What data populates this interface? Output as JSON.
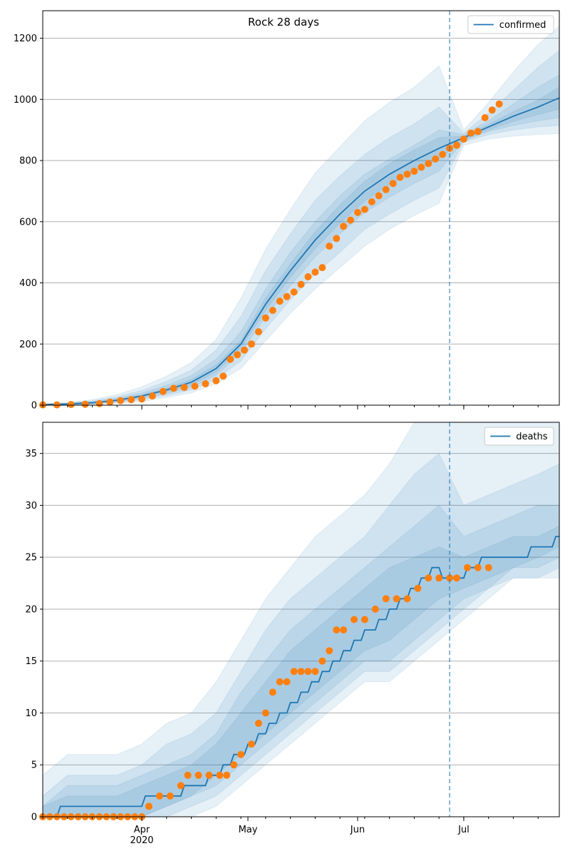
{
  "figure": {
    "title": "Rock 28 days"
  },
  "colors": {
    "model": "#1f77b4",
    "observed": "#ff7f0e",
    "band": "#1f77b4",
    "grid": "#b0b0b0",
    "vline": "#1f77b4"
  },
  "x_axis": {
    "tick_labels": [
      "Apr",
      "May",
      "Jun",
      "Jul"
    ],
    "tick_dates": [
      "2020-04-01",
      "2020-05-01",
      "2020-06-01",
      "2020-07-01"
    ],
    "year_label": "2020",
    "xlim": [
      "2020-03-04",
      "2020-07-28"
    ],
    "minor_tick_step_days": 7
  },
  "forecast_start": "2020-06-27",
  "chart_data": [
    {
      "type": "line",
      "panel": "confirmed",
      "ylim": [
        0,
        1290
      ],
      "yticks": [
        0,
        200,
        400,
        600,
        800,
        1000,
        1200
      ],
      "grid": true,
      "legend": {
        "placement": "top-right",
        "entries": [
          "confirmed"
        ]
      },
      "model": {
        "name": "confirmed",
        "x": [
          "2020-03-04",
          "2020-03-11",
          "2020-03-18",
          "2020-03-25",
          "2020-04-01",
          "2020-04-08",
          "2020-04-15",
          "2020-04-22",
          "2020-04-29",
          "2020-05-06",
          "2020-05-13",
          "2020-05-20",
          "2020-05-27",
          "2020-06-03",
          "2020-06-10",
          "2020-06-17",
          "2020-06-24",
          "2020-07-01",
          "2020-07-08",
          "2020-07-15",
          "2020-07-22",
          "2020-07-28"
        ],
        "y": [
          2,
          4,
          8,
          16,
          30,
          50,
          75,
          120,
          200,
          330,
          440,
          540,
          625,
          700,
          755,
          800,
          840,
          875,
          910,
          945,
          975,
          1005
        ]
      },
      "bands": [
        {
          "lo": [
            0,
            1,
            3,
            6,
            12,
            25,
            40,
            70,
            120,
            210,
            300,
            380,
            450,
            520,
            575,
            620,
            660,
            850,
            870,
            880,
            885,
            888
          ],
          "hi": [
            4,
            9,
            18,
            35,
            60,
            95,
            140,
            215,
            350,
            510,
            640,
            760,
            845,
            930,
            990,
            1040,
            1110,
            900,
            990,
            1090,
            1180,
            1240
          ]
        },
        {
          "lo": [
            0,
            2,
            4,
            9,
            18,
            32,
            50,
            85,
            145,
            250,
            345,
            430,
            500,
            575,
            625,
            670,
            710,
            860,
            885,
            900,
            910,
            915
          ],
          "hi": [
            3,
            7,
            14,
            28,
            48,
            78,
            115,
            180,
            290,
            440,
            560,
            670,
            750,
            820,
            875,
            920,
            975,
            890,
            955,
            1030,
            1105,
            1160
          ]
        },
        {
          "lo": [
            1,
            2,
            5,
            11,
            22,
            38,
            58,
            98,
            170,
            290,
            390,
            485,
            560,
            630,
            680,
            725,
            765,
            865,
            895,
            915,
            930,
            940
          ],
          "hi": [
            3,
            6,
            12,
            23,
            40,
            65,
            97,
            150,
            240,
            380,
            500,
            600,
            685,
            755,
            805,
            850,
            900,
            885,
            930,
            985,
            1040,
            1080
          ]
        },
        {
          "lo": [
            1,
            3,
            6,
            13,
            26,
            44,
            66,
            108,
            188,
            310,
            418,
            512,
            595,
            668,
            720,
            765,
            805,
            868,
            900,
            928,
            950,
            968
          ],
          "hi": [
            2,
            5,
            10,
            19,
            34,
            56,
            84,
            132,
            212,
            350,
            462,
            568,
            655,
            732,
            790,
            835,
            875,
            880,
            918,
            960,
            998,
            1040
          ]
        }
      ],
      "observed": {
        "x": [
          "2020-03-04",
          "2020-03-08",
          "2020-03-12",
          "2020-03-16",
          "2020-03-20",
          "2020-03-23",
          "2020-03-26",
          "2020-03-29",
          "2020-04-01",
          "2020-04-04",
          "2020-04-07",
          "2020-04-10",
          "2020-04-13",
          "2020-04-16",
          "2020-04-19",
          "2020-04-22",
          "2020-04-24",
          "2020-04-26",
          "2020-04-28",
          "2020-04-30",
          "2020-05-02",
          "2020-05-04",
          "2020-05-06",
          "2020-05-08",
          "2020-05-10",
          "2020-05-12",
          "2020-05-14",
          "2020-05-16",
          "2020-05-18",
          "2020-05-20",
          "2020-05-22",
          "2020-05-24",
          "2020-05-26",
          "2020-05-28",
          "2020-05-30",
          "2020-06-01",
          "2020-06-03",
          "2020-06-05",
          "2020-06-07",
          "2020-06-09",
          "2020-06-11",
          "2020-06-13",
          "2020-06-15",
          "2020-06-17",
          "2020-06-19",
          "2020-06-21",
          "2020-06-23",
          "2020-06-25",
          "2020-06-27",
          "2020-06-29",
          "2020-07-01",
          "2020-07-03",
          "2020-07-05",
          "2020-07-07",
          "2020-07-09",
          "2020-07-11"
        ],
        "y": [
          1,
          1,
          2,
          3,
          5,
          10,
          15,
          18,
          20,
          30,
          45,
          55,
          58,
          62,
          70,
          80,
          95,
          150,
          165,
          180,
          200,
          240,
          285,
          310,
          340,
          355,
          370,
          395,
          420,
          435,
          450,
          520,
          545,
          585,
          605,
          630,
          640,
          665,
          685,
          705,
          725,
          745,
          755,
          765,
          778,
          790,
          805,
          820,
          840,
          850,
          870,
          890,
          895,
          940,
          965,
          985
        ]
      }
    },
    {
      "type": "line",
      "panel": "deaths",
      "ylim": [
        0,
        38
      ],
      "yticks": [
        0,
        5,
        10,
        15,
        20,
        25,
        30,
        35
      ],
      "grid": true,
      "legend": {
        "placement": "top-right",
        "entries": [
          "deaths"
        ]
      },
      "model": {
        "name": "deaths",
        "x": [
          "2020-03-04",
          "2020-03-08",
          "2020-03-09",
          "2020-04-01",
          "2020-04-02",
          "2020-04-12",
          "2020-04-13",
          "2020-04-19",
          "2020-04-20",
          "2020-04-23",
          "2020-04-24",
          "2020-04-26",
          "2020-04-27",
          "2020-04-30",
          "2020-05-01",
          "2020-05-03",
          "2020-05-04",
          "2020-05-06",
          "2020-05-07",
          "2020-05-09",
          "2020-05-10",
          "2020-05-12",
          "2020-05-13",
          "2020-05-15",
          "2020-05-16",
          "2020-05-18",
          "2020-05-19",
          "2020-05-21",
          "2020-05-22",
          "2020-05-24",
          "2020-05-25",
          "2020-05-27",
          "2020-05-28",
          "2020-05-30",
          "2020-05-31",
          "2020-06-02",
          "2020-06-03",
          "2020-06-06",
          "2020-06-07",
          "2020-06-09",
          "2020-06-10",
          "2020-06-12",
          "2020-06-13",
          "2020-06-15",
          "2020-06-16",
          "2020-06-18",
          "2020-06-19",
          "2020-06-21",
          "2020-06-22",
          "2020-06-24",
          "2020-06-25",
          "2020-06-27",
          "2020-06-28",
          "2020-07-01",
          "2020-07-02",
          "2020-07-05",
          "2020-07-06",
          "2020-07-12",
          "2020-07-13",
          "2020-07-19",
          "2020-07-20",
          "2020-07-26",
          "2020-07-27",
          "2020-07-28"
        ],
        "y": [
          0,
          0,
          1,
          1,
          2,
          2,
          3,
          3,
          4,
          4,
          5,
          5,
          6,
          6,
          7,
          7,
          8,
          8,
          9,
          9,
          10,
          10,
          11,
          11,
          12,
          12,
          13,
          13,
          14,
          14,
          15,
          15,
          16,
          16,
          17,
          17,
          18,
          18,
          19,
          19,
          20,
          20,
          21,
          21,
          22,
          22,
          23,
          23,
          24,
          24,
          23,
          23,
          23,
          23,
          24,
          24,
          25,
          25,
          25,
          25,
          26,
          26,
          27,
          27
        ]
      },
      "bands": [
        {
          "lo": [
            0,
            0,
            0,
            0,
            0,
            0,
            0,
            1,
            3,
            5,
            7,
            9,
            11,
            13,
            13,
            15,
            17,
            19,
            21,
            23,
            23,
            23
          ],
          "hi": [
            4,
            6,
            6,
            6,
            7,
            9,
            10,
            13,
            17,
            21,
            24,
            27,
            29,
            31,
            34,
            38,
            40,
            38,
            38,
            38,
            38,
            38
          ]
        },
        {
          "lo": [
            0,
            0,
            0,
            0,
            0,
            0,
            1,
            2,
            4,
            6,
            8,
            10,
            12,
            14,
            14,
            16,
            18,
            20,
            22,
            23,
            23,
            24
          ],
          "hi": [
            2,
            4,
            4,
            4,
            5,
            7,
            8,
            10,
            14,
            18,
            21,
            23,
            25,
            27,
            30,
            33,
            35,
            30,
            31,
            32,
            33,
            34
          ]
        },
        {
          "lo": [
            0,
            0,
            0,
            0,
            0,
            1,
            2,
            3,
            5,
            7,
            9,
            11,
            13,
            15,
            15,
            17,
            19,
            21,
            22,
            24,
            24,
            25
          ],
          "hi": [
            1,
            3,
            3,
            3,
            4,
            5,
            6,
            8,
            12,
            15,
            18,
            20,
            22,
            24,
            26,
            28,
            30,
            27,
            28,
            29,
            30,
            30
          ]
        },
        {
          "lo": [
            0,
            0,
            0,
            0,
            0,
            1,
            2,
            4,
            6,
            8,
            10,
            12,
            14,
            16,
            17,
            19,
            21,
            22,
            23,
            24,
            25,
            26
          ],
          "hi": [
            1,
            2,
            2,
            2,
            3,
            4,
            5,
            7,
            10,
            13,
            16,
            18,
            20,
            22,
            24,
            25,
            26,
            25,
            26,
            27,
            27,
            28
          ]
        }
      ],
      "band_x": [
        "2020-03-04",
        "2020-03-11",
        "2020-03-18",
        "2020-03-25",
        "2020-04-01",
        "2020-04-08",
        "2020-04-15",
        "2020-04-22",
        "2020-04-29",
        "2020-05-06",
        "2020-05-13",
        "2020-05-20",
        "2020-05-27",
        "2020-06-03",
        "2020-06-10",
        "2020-06-17",
        "2020-06-24",
        "2020-07-01",
        "2020-07-08",
        "2020-07-15",
        "2020-07-22",
        "2020-07-28"
      ],
      "observed": {
        "x": [
          "2020-03-04",
          "2020-03-06",
          "2020-03-08",
          "2020-03-10",
          "2020-03-12",
          "2020-03-14",
          "2020-03-16",
          "2020-03-18",
          "2020-03-20",
          "2020-03-22",
          "2020-03-24",
          "2020-03-26",
          "2020-03-28",
          "2020-03-30",
          "2020-04-01",
          "2020-04-03",
          "2020-04-06",
          "2020-04-09",
          "2020-04-12",
          "2020-04-14",
          "2020-04-17",
          "2020-04-20",
          "2020-04-23",
          "2020-04-25",
          "2020-04-27",
          "2020-04-29",
          "2020-05-02",
          "2020-05-04",
          "2020-05-06",
          "2020-05-08",
          "2020-05-10",
          "2020-05-12",
          "2020-05-14",
          "2020-05-16",
          "2020-05-18",
          "2020-05-20",
          "2020-05-22",
          "2020-05-24",
          "2020-05-26",
          "2020-05-28",
          "2020-05-31",
          "2020-06-03",
          "2020-06-06",
          "2020-06-09",
          "2020-06-12",
          "2020-06-15",
          "2020-06-18",
          "2020-06-21",
          "2020-06-24",
          "2020-06-27",
          "2020-06-29",
          "2020-07-02",
          "2020-07-05",
          "2020-07-08"
        ],
        "y": [
          0,
          0,
          0,
          0,
          0,
          0,
          0,
          0,
          0,
          0,
          0,
          0,
          0,
          0,
          0,
          1,
          2,
          2,
          3,
          4,
          4,
          4,
          4,
          4,
          5,
          6,
          7,
          9,
          10,
          12,
          13,
          13,
          14,
          14,
          14,
          14,
          15,
          16,
          18,
          18,
          19,
          19,
          20,
          21,
          21,
          21,
          22,
          23,
          23,
          23,
          23,
          24,
          24,
          24
        ]
      }
    }
  ]
}
